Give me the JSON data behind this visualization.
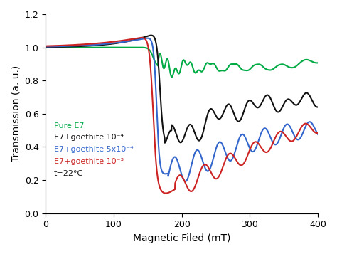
{
  "xlabel": "Magnetic Filed (mT)",
  "ylabel": "Transmission (a. u.)",
  "xlim": [
    0,
    400
  ],
  "ylim": [
    0,
    1.2
  ],
  "xticks": [
    0,
    100,
    200,
    300,
    400
  ],
  "yticks": [
    0,
    0.2,
    0.4,
    0.6,
    0.8,
    1.0,
    1.2
  ],
  "colors": {
    "green": "#00aa44",
    "black": "#111111",
    "blue": "#3366cc",
    "red": "#cc2222"
  },
  "background": "#ffffff",
  "legend_labels": [
    "Pure E7",
    "E7+goethite 10⁻⁴",
    "E7+goethite 5x10⁻⁴",
    "E7+goethite 10⁻³",
    "t=22°C"
  ]
}
